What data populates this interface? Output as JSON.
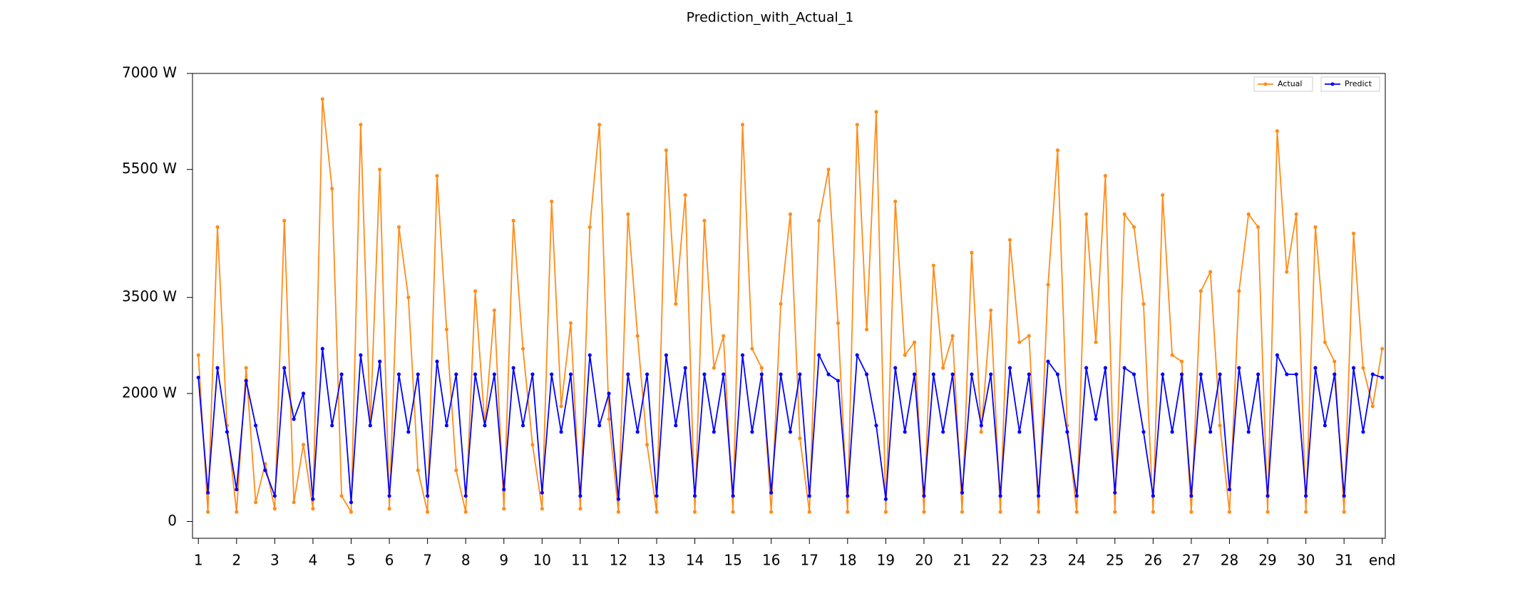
{
  "chart_data": {
    "type": "line",
    "title": "Prediction_with_Actual_1",
    "x": [
      1,
      1.25,
      1.5,
      1.75,
      2,
      2.25,
      2.5,
      2.75,
      3,
      3.25,
      3.5,
      3.75,
      4,
      4.25,
      4.5,
      4.75,
      5,
      5.25,
      5.5,
      5.75,
      6,
      6.25,
      6.5,
      6.75,
      7,
      7.25,
      7.5,
      7.75,
      8,
      8.25,
      8.5,
      8.75,
      9,
      9.25,
      9.5,
      9.75,
      10,
      10.25,
      10.5,
      10.75,
      11,
      11.25,
      11.5,
      11.75,
      12,
      12.25,
      12.5,
      12.75,
      13,
      13.25,
      13.5,
      13.75,
      14,
      14.25,
      14.5,
      14.75,
      15,
      15.25,
      15.5,
      15.75,
      16,
      16.25,
      16.5,
      16.75,
      17,
      17.25,
      17.5,
      17.75,
      18,
      18.25,
      18.5,
      18.75,
      19,
      19.25,
      19.5,
      19.75,
      20,
      20.25,
      20.5,
      20.75,
      21,
      21.25,
      21.5,
      21.75,
      22,
      22.25,
      22.5,
      22.75,
      23,
      23.25,
      23.5,
      23.75,
      24,
      24.25,
      24.5,
      24.75,
      25,
      25.25,
      25.5,
      25.75,
      26,
      26.25,
      26.5,
      26.75,
      27,
      27.25,
      27.5,
      27.75,
      28,
      28.25,
      28.5,
      28.75,
      29,
      29.25,
      29.5,
      29.75,
      30,
      30.25,
      30.5,
      30.75,
      31,
      31.25,
      31.5,
      31.75,
      32
    ],
    "series": [
      {
        "name": "Actual",
        "color": "#ff8c1a",
        "values": [
          2600,
          150,
          4600,
          1500,
          150,
          2400,
          300,
          900,
          200,
          4700,
          300,
          1200,
          200,
          6600,
          5200,
          400,
          150,
          6200,
          1500,
          5500,
          200,
          4600,
          3500,
          800,
          150,
          5400,
          3000,
          800,
          150,
          3600,
          1500,
          3300,
          200,
          4700,
          2700,
          1200,
          200,
          5000,
          1800,
          3100,
          200,
          4600,
          6200,
          1600,
          150,
          4800,
          2900,
          1200,
          150,
          5800,
          3400,
          5100,
          150,
          4700,
          2400,
          2900,
          150,
          6200,
          2700,
          2400,
          150,
          3400,
          4800,
          1300,
          150,
          4700,
          5500,
          3100,
          150,
          6200,
          3000,
          6400,
          150,
          5000,
          2600,
          2800,
          150,
          4000,
          2400,
          2900,
          150,
          4200,
          1400,
          3300,
          150,
          4400,
          2800,
          2900,
          150,
          3700,
          5800,
          1500,
          150,
          4800,
          2800,
          5400,
          150,
          4800,
          4600,
          3400,
          150,
          5100,
          2600,
          2500,
          150,
          3600,
          3900,
          1500,
          150,
          3600,
          4800,
          4600,
          150,
          6100,
          3900,
          4800,
          150,
          4600,
          2800,
          2500,
          150,
          4500,
          2400,
          1800,
          2700
        ]
      },
      {
        "name": "Predict",
        "color": "#0000ff",
        "values": [
          2250,
          450,
          2400,
          1400,
          500,
          2200,
          1500,
          800,
          400,
          2400,
          1600,
          2000,
          350,
          2700,
          1500,
          2300,
          300,
          2600,
          1500,
          2500,
          400,
          2300,
          1400,
          2300,
          400,
          2500,
          1500,
          2300,
          400,
          2300,
          1500,
          2300,
          500,
          2400,
          1500,
          2300,
          450,
          2300,
          1400,
          2300,
          400,
          2600,
          1500,
          2000,
          350,
          2300,
          1400,
          2300,
          400,
          2600,
          1500,
          2400,
          400,
          2300,
          1400,
          2300,
          400,
          2600,
          1400,
          2300,
          450,
          2300,
          1400,
          2300,
          400,
          2600,
          2300,
          2200,
          400,
          2600,
          2300,
          1500,
          350,
          2400,
          1400,
          2300,
          400,
          2300,
          1400,
          2300,
          450,
          2300,
          1500,
          2300,
          400,
          2400,
          1400,
          2300,
          400,
          2500,
          2300,
          1400,
          400,
          2400,
          1600,
          2400,
          450,
          2400,
          2300,
          1400,
          400,
          2300,
          1400,
          2300,
          400,
          2300,
          1400,
          2300,
          500,
          2400,
          1400,
          2300,
          400,
          2600,
          2300,
          2300,
          400,
          2400,
          1500,
          2300,
          400,
          2400,
          1400,
          2300,
          2250
        ]
      }
    ],
    "xlim": [
      0.846,
      32.08
    ],
    "xticks": [
      1,
      2,
      3,
      4,
      5,
      6,
      7,
      8,
      9,
      10,
      11,
      12,
      13,
      14,
      15,
      16,
      17,
      18,
      19,
      20,
      21,
      22,
      23,
      24,
      25,
      26,
      27,
      28,
      29,
      30,
      31,
      {
        "value": 32,
        "label": "end"
      }
    ],
    "ylim": [
      -262,
      7000
    ],
    "yticks": [
      0,
      {
        "value": 2000,
        "label": "2000 W"
      },
      {
        "value": 3500,
        "label": "3500 W"
      },
      {
        "value": 5500,
        "label": "5500 W"
      },
      {
        "value": 7000,
        "label": "7000 W"
      }
    ],
    "legend": "upper right"
  }
}
